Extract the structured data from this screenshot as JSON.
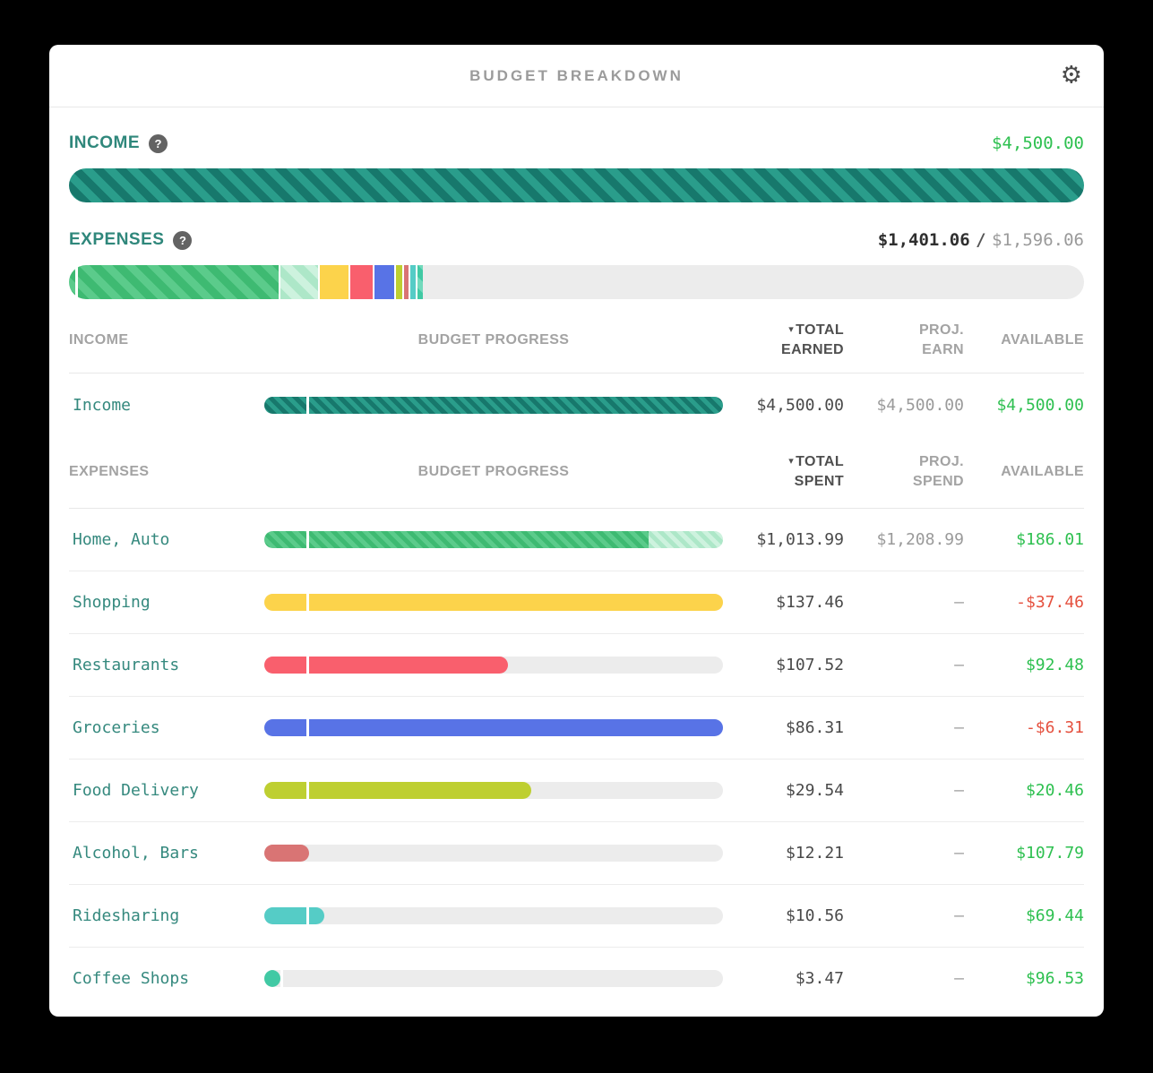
{
  "title_bar": {
    "title": "BUDGET BREAKDOWN",
    "gear_icon": "⚙"
  },
  "colors": {
    "page_bg": "#000000",
    "card_bg": "#ffffff",
    "teal_stripe_a": "#2a9d8b",
    "teal_stripe_b": "#17786c",
    "green_stripe_a": "#3eba72",
    "green_stripe_b": "#5bcb8b",
    "green_light_a": "#ade7c8",
    "green_light_b": "#cdf2de",
    "yellow": "#fcd34b",
    "red": "#f95f6d",
    "blue": "#5873e6",
    "olive": "#becf31",
    "salmon": "#d97474",
    "teal2": "#55ccc6",
    "mint": "#41c9a4",
    "track": "#ececec",
    "label_teal": "#35897e",
    "positive_text": "#2ec050",
    "negative_text": "#e5513f"
  },
  "summary": {
    "income": {
      "label": "INCOME",
      "help_icon": "?",
      "amount": "$4,500.00",
      "bar_segments": [
        {
          "c": "tealStripe",
          "pct": 100
        }
      ]
    },
    "expenses": {
      "label": "EXPENSES",
      "help_icon": "?",
      "spent": "$1,401.06",
      "divider": "/",
      "projected": "$1,596.06",
      "bar_segments": [
        {
          "c": "greenStripe",
          "pct": 0.62
        },
        {
          "c": "gap",
          "px": 3
        },
        {
          "c": "greenStripe",
          "pct": 19.8
        },
        {
          "c": "gap",
          "px": 2
        },
        {
          "c": "greenLightStripe",
          "pct": 3.7
        },
        {
          "c": "gap",
          "px": 2
        },
        {
          "c": "yellow",
          "pct": 2.8
        },
        {
          "c": "gap",
          "px": 2
        },
        {
          "c": "red",
          "pct": 2.2
        },
        {
          "c": "gap",
          "px": 2
        },
        {
          "c": "blue",
          "pct": 1.95
        },
        {
          "c": "gap",
          "px": 2
        },
        {
          "c": "olive",
          "pct": 0.6
        },
        {
          "c": "gap",
          "px": 2
        },
        {
          "c": "salmon",
          "pct": 0.45
        },
        {
          "c": "gap",
          "px": 2
        },
        {
          "c": "teal2",
          "pct": 0.5
        },
        {
          "c": "gap",
          "px": 2
        },
        {
          "c": "mintStripe",
          "pct": 0.6
        }
      ]
    }
  },
  "income_table": {
    "headers": {
      "col1": "INCOME",
      "col2": "BUDGET PROGRESS",
      "sort_icon": "▾",
      "col3_line1": "TOTAL",
      "col3_line2": "EARNED",
      "col4_line1": "PROJ.",
      "col4_line2": "EARN",
      "col5": "AVAILABLE"
    },
    "rows": [
      {
        "label": "Income",
        "total": "$4,500.00",
        "proj": "$4,500.00",
        "available": "$4,500.00",
        "available_tone": "green",
        "bar_segments": [
          {
            "c": "tealStripe",
            "pct": 9.2
          },
          {
            "c": "gap",
            "px": 3
          },
          {
            "c": "tealStripe",
            "pct": 90.2
          }
        ]
      }
    ]
  },
  "expenses_table": {
    "headers": {
      "col1": "EXPENSES",
      "col2": "BUDGET PROGRESS",
      "sort_icon": "▾",
      "col3_line1": "TOTAL",
      "col3_line2": "SPENT",
      "col4_line1": "PROJ.",
      "col4_line2": "SPEND",
      "col5": "AVAILABLE"
    },
    "rows": [
      {
        "label": "Home, Auto",
        "total": "$1,013.99",
        "proj": "$1,208.99",
        "available": "$186.01",
        "available_tone": "green",
        "bar_segments": [
          {
            "c": "greenStripe",
            "pct": 9.2
          },
          {
            "c": "gap",
            "px": 3
          },
          {
            "c": "greenStripe",
            "pct": 74.0
          },
          {
            "c": "greenLightStripe",
            "pct": 16.2
          }
        ]
      },
      {
        "label": "Shopping",
        "total": "$137.46",
        "proj": "–",
        "available": "-$37.46",
        "available_tone": "red",
        "bar_segments": [
          {
            "c": "yellow",
            "pct": 9.2
          },
          {
            "c": "gap",
            "px": 3
          },
          {
            "c": "yellow",
            "pct": 90.2
          }
        ]
      },
      {
        "label": "Restaurants",
        "total": "$107.52",
        "proj": "–",
        "available": "$92.48",
        "available_tone": "green",
        "bar_segments": [
          {
            "c": "red",
            "pct": 9.2
          },
          {
            "c": "gap",
            "px": 3
          },
          {
            "c": "red",
            "pct": 43.3,
            "cap": true
          }
        ]
      },
      {
        "label": "Groceries",
        "total": "$86.31",
        "proj": "–",
        "available": "-$6.31",
        "available_tone": "red",
        "bar_segments": [
          {
            "c": "blue",
            "pct": 9.2
          },
          {
            "c": "gap",
            "px": 3
          },
          {
            "c": "blue",
            "pct": 90.2
          }
        ]
      },
      {
        "label": "Food Delivery",
        "total": "$29.54",
        "proj": "–",
        "available": "$20.46",
        "available_tone": "green",
        "bar_segments": [
          {
            "c": "olive",
            "pct": 9.2
          },
          {
            "c": "gap",
            "px": 3
          },
          {
            "c": "olive",
            "pct": 48.4,
            "cap": true
          }
        ]
      },
      {
        "label": "Alcohol, Bars",
        "total": "$12.21",
        "proj": "–",
        "available": "$107.79",
        "available_tone": "green",
        "bar_segments": [
          {
            "c": "salmon",
            "pct": 9.8,
            "cap": true
          }
        ]
      },
      {
        "label": "Ridesharing",
        "total": "$10.56",
        "proj": "–",
        "available": "$69.44",
        "available_tone": "green",
        "bar_segments": [
          {
            "c": "teal2",
            "pct": 9.2
          },
          {
            "c": "gap",
            "px": 3
          },
          {
            "c": "teal2",
            "pct": 3.3,
            "cap": true
          }
        ]
      },
      {
        "label": "Coffee Shops",
        "total": "$3.47",
        "proj": "–",
        "available": "$96.53",
        "available_tone": "green",
        "bar_segments": [
          {
            "c": "mint",
            "pct": 3.5,
            "cap": true
          },
          {
            "c": "gap",
            "px": 3
          }
        ]
      }
    ]
  }
}
